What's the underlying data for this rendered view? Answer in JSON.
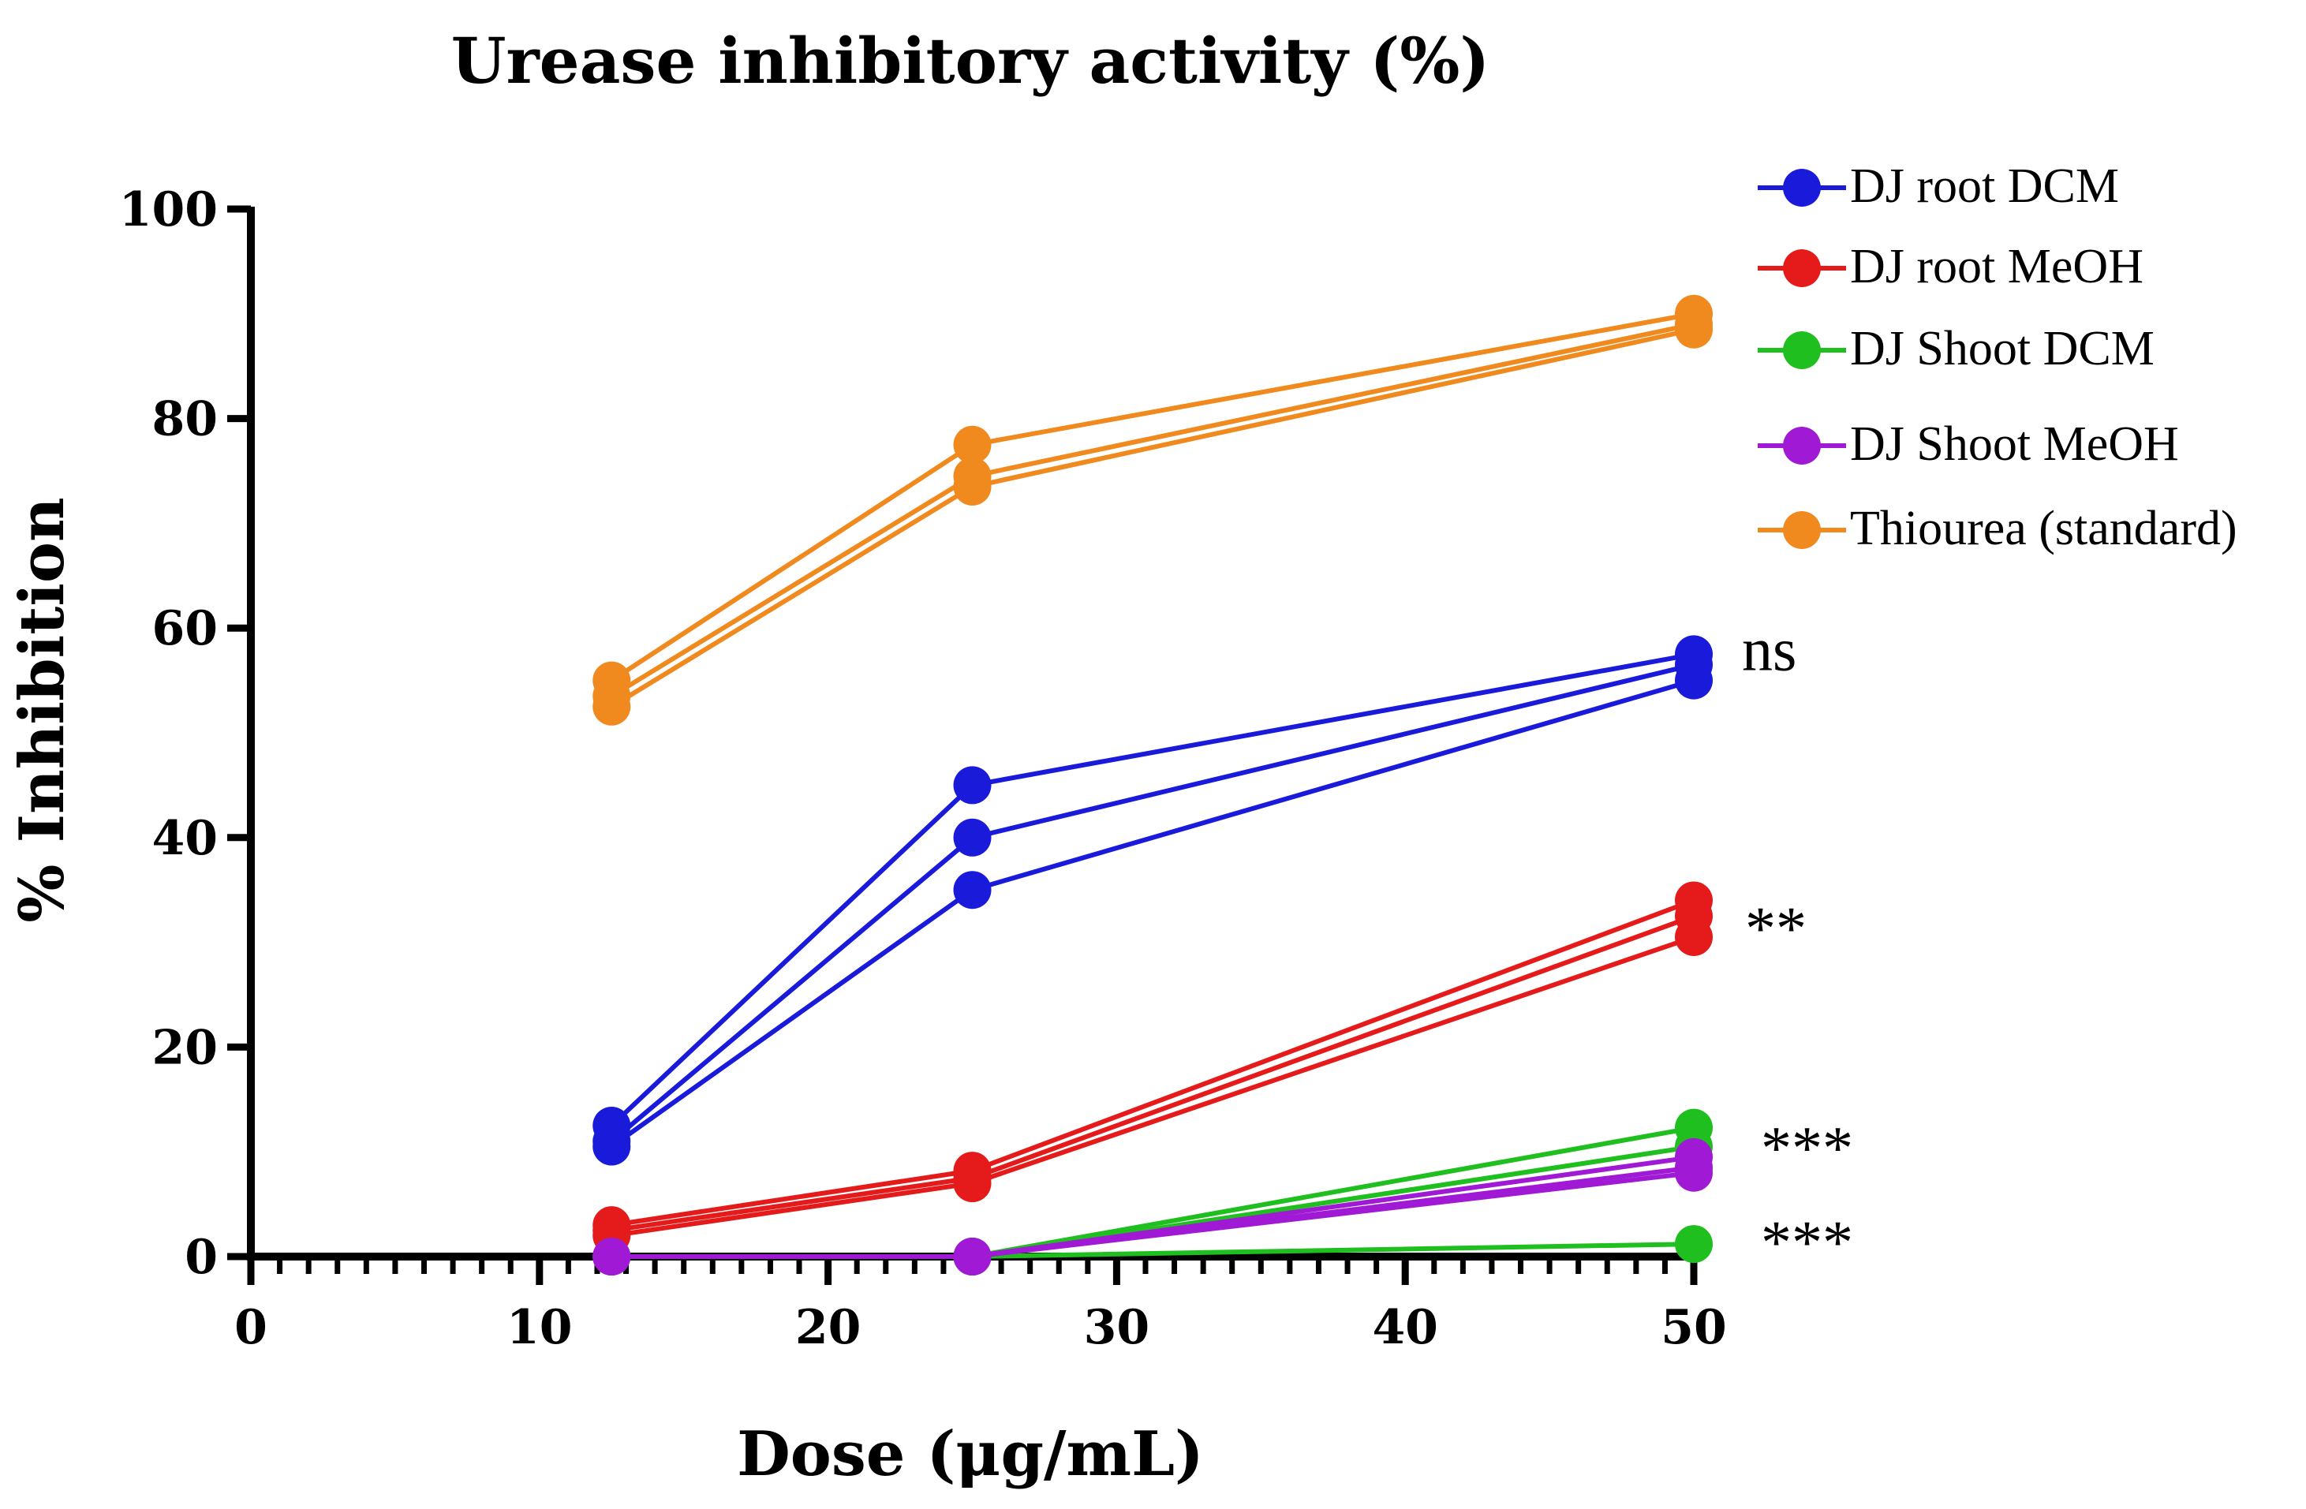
{
  "chart_data": {
    "type": "line",
    "title": "Urease inhibitory activity (%)",
    "xlabel": "Dose (μg/mL)",
    "ylabel": "% Inhibition",
    "xlim": [
      0,
      50
    ],
    "ylim": [
      0,
      100
    ],
    "x_ticks": [
      "0",
      "10",
      "20",
      "30",
      "40",
      "50"
    ],
    "y_ticks": [
      "0",
      "20",
      "40",
      "60",
      "80",
      "100"
    ],
    "x": [
      12.5,
      25,
      50
    ],
    "legend_position": "top-right",
    "series": [
      {
        "name": "DJ root DCM",
        "color": "#1a1adb",
        "replicates": [
          [
            12.5,
            45,
            57.5
          ],
          [
            11,
            40,
            56.5
          ],
          [
            10.5,
            35,
            55
          ]
        ]
      },
      {
        "name": "DJ root MeOH",
        "color": "#e51a1a",
        "replicates": [
          [
            3,
            8.2,
            34
          ],
          [
            2.5,
            7.5,
            32.5
          ],
          [
            2,
            7,
            30.5
          ]
        ]
      },
      {
        "name": "DJ Shoot DCM",
        "color": "#1fbf1f",
        "replicates": [
          [
            0,
            0,
            12.3
          ],
          [
            0,
            0,
            10.5
          ],
          [
            0,
            0,
            1.2
          ]
        ]
      },
      {
        "name": "DJ Shoot MeOH",
        "color": "#a01ad6",
        "replicates": [
          [
            0,
            0,
            9.5
          ],
          [
            0,
            0,
            8.5
          ],
          [
            0,
            0,
            8
          ]
        ]
      },
      {
        "name": "Thiourea (standard)",
        "color": "#f08a1e",
        "replicates": [
          [
            55,
            77.5,
            90
          ],
          [
            53.5,
            74.5,
            89
          ],
          [
            52.5,
            73.5,
            88.5
          ]
        ]
      }
    ],
    "annotations": [
      {
        "text": "ns",
        "y": 57.5
      },
      {
        "text": "**",
        "y": 33
      },
      {
        "text": "***",
        "y": 12
      },
      {
        "text": "***",
        "y": 3
      }
    ]
  }
}
